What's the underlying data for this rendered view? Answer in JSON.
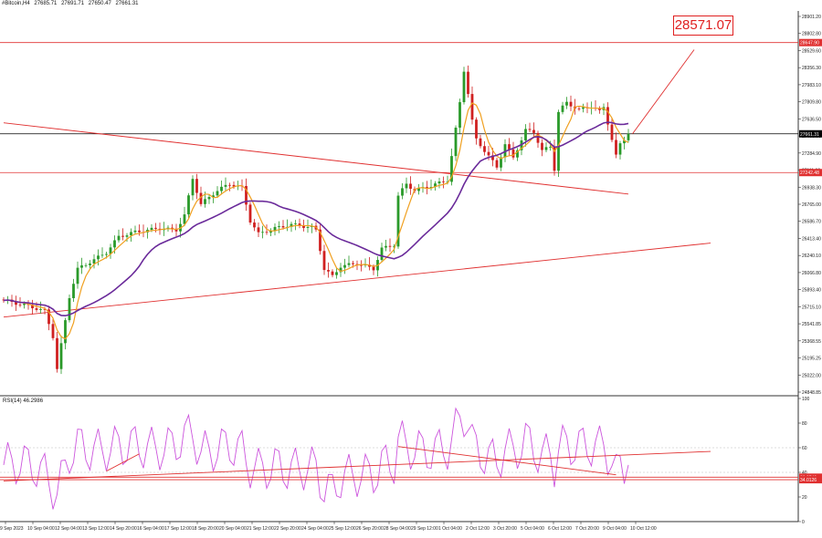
{
  "header": {
    "symbol": "#Bitcoin,H4",
    "open": "27685.71",
    "high": "27691.71",
    "low": "27650.47",
    "close": "27661.31"
  },
  "target_label": "28571.07",
  "rsi_label": "RSI(14) 46.2986",
  "colors": {
    "bull": "#2a9a2a",
    "bear": "#d02020",
    "ma_fast": "#f0a020",
    "ma_slow": "#6a2a9a",
    "lines": "#e03030",
    "rsi": "#cc55dd"
  },
  "chart_data": [
    {
      "type": "candlestick",
      "title": "#Bitcoin,H4",
      "ylim": [
        24848.85,
        28990
      ],
      "price_axis_ticks": [
        "28901.20",
        "28802.80",
        "28529.60",
        "28356.30",
        "27983.10",
        "27809.80",
        "27636.50",
        "27408.00",
        "27284.90",
        "27111.60",
        "26938.30",
        "26765.00",
        "26586.70",
        "26413.40",
        "26240.10",
        "26066.80",
        "25893.40",
        "25715.10",
        "25541.85",
        "25368.55",
        "25195.25",
        "25022.00",
        "24848.85"
      ],
      "time_axis_ticks": [
        "9 Sep 2023",
        "10 Sep 04:00",
        "12 Sep 04:00",
        "13 Sep 12:00",
        "14 Sep 20:00",
        "16 Sep 04:00",
        "17 Sep 12:00",
        "18 Sep 20:00",
        "20 Sep 04:00",
        "21 Sep 12:00",
        "22 Sep 20:00",
        "24 Sep 04:00",
        "25 Sep 12:00",
        "26 Sep 20:00",
        "28 Sep 04:00",
        "29 Sep 12:00",
        "1 Oct 04:00",
        "2 Oct 12:00",
        "3 Oct 20:00",
        "5 Oct 04:00",
        "6 Oct 12:00",
        "7 Oct 20:00",
        "9 Oct 04:00",
        "10 Oct 12:00"
      ],
      "price_markers": [
        {
          "value": 28647.9,
          "label": "28647.90",
          "color": "#e03030"
        },
        {
          "value": 27661.31,
          "label": "27661.31",
          "color": "#000000"
        },
        {
          "value": 27242.48,
          "label": "27242.48",
          "color": "#e03030"
        }
      ],
      "horizontal_lines": [
        28647.9,
        27661.31,
        27242.48
      ],
      "trendlines": [
        {
          "from": [
            0,
            27780
          ],
          "to": [
            152,
            27010
          ]
        },
        {
          "from": [
            0,
            25680
          ],
          "to": [
            172,
            26480
          ]
        }
      ],
      "projection": {
        "from": [
          153,
          27661
        ],
        "to": [
          168,
          28571.07
        ],
        "label": "28571.07"
      },
      "close_anchors": [
        [
          0,
          25860
        ],
        [
          6,
          25800
        ],
        [
          10,
          25745
        ],
        [
          12,
          25470
        ],
        [
          13,
          25120
        ],
        [
          14,
          25380
        ],
        [
          16,
          25900
        ],
        [
          18,
          26200
        ],
        [
          22,
          26300
        ],
        [
          25,
          26380
        ],
        [
          28,
          26550
        ],
        [
          32,
          26600
        ],
        [
          38,
          26640
        ],
        [
          42,
          26620
        ],
        [
          44,
          26780
        ],
        [
          46,
          27180
        ],
        [
          48,
          26900
        ],
        [
          52,
          27050
        ],
        [
          55,
          27120
        ],
        [
          58,
          27080
        ],
        [
          60,
          26720
        ],
        [
          62,
          26580
        ],
        [
          66,
          26640
        ],
        [
          70,
          26680
        ],
        [
          75,
          26650
        ],
        [
          76,
          26620
        ],
        [
          78,
          26200
        ],
        [
          80,
          26120
        ],
        [
          82,
          26230
        ],
        [
          86,
          26260
        ],
        [
          90,
          26200
        ],
        [
          92,
          26420
        ],
        [
          95,
          26460
        ],
        [
          96,
          26990
        ],
        [
          98,
          27120
        ],
        [
          100,
          27050
        ],
        [
          104,
          27100
        ],
        [
          108,
          27160
        ],
        [
          109,
          27420
        ],
        [
          111,
          28000
        ],
        [
          112,
          28350
        ],
        [
          113,
          28100
        ],
        [
          114,
          27800
        ],
        [
          115,
          27600
        ],
        [
          118,
          27420
        ],
        [
          120,
          27300
        ],
        [
          122,
          27550
        ],
        [
          124,
          27400
        ],
        [
          127,
          27700
        ],
        [
          129,
          27680
        ],
        [
          131,
          27480
        ],
        [
          133,
          27520
        ],
        [
          134,
          27280
        ],
        [
          135,
          27900
        ],
        [
          137,
          28000
        ],
        [
          140,
          27920
        ],
        [
          143,
          27960
        ],
        [
          145,
          27900
        ],
        [
          146,
          27950
        ],
        [
          147,
          27780
        ],
        [
          148,
          27600
        ],
        [
          149,
          27420
        ],
        [
          150,
          27550
        ],
        [
          152,
          27661
        ]
      ],
      "ma_fast_period": 5,
      "ma_slow_period": 21
    },
    {
      "type": "line",
      "title": "RSI(14) 46.2986",
      "ylim": [
        0,
        100
      ],
      "y_ticks": [
        "100",
        "80",
        "60",
        "40",
        "20",
        "0"
      ],
      "levels": [
        {
          "value": 36.0746,
          "label": "36.0746",
          "color": "#e03030"
        },
        {
          "value": 34.0126,
          "label": "34.0126",
          "color": "#e03030"
        }
      ],
      "rsi_anchors": [
        [
          0,
          46
        ],
        [
          4,
          48
        ],
        [
          8,
          44
        ],
        [
          10,
          38
        ],
        [
          12,
          28
        ],
        [
          13,
          24
        ],
        [
          14,
          32
        ],
        [
          16,
          55
        ],
        [
          18,
          62
        ],
        [
          22,
          57
        ],
        [
          25,
          59
        ],
        [
          28,
          61
        ],
        [
          32,
          62
        ],
        [
          36,
          59
        ],
        [
          40,
          60
        ],
        [
          44,
          68
        ],
        [
          46,
          73
        ],
        [
          48,
          55
        ],
        [
          52,
          59
        ],
        [
          55,
          62
        ],
        [
          58,
          57
        ],
        [
          60,
          45
        ],
        [
          62,
          42
        ],
        [
          66,
          45
        ],
        [
          70,
          42
        ],
        [
          74,
          44
        ],
        [
          76,
          43
        ],
        [
          78,
          27
        ],
        [
          80,
          24
        ],
        [
          82,
          36
        ],
        [
          86,
          38
        ],
        [
          90,
          38
        ],
        [
          92,
          46
        ],
        [
          95,
          48
        ],
        [
          96,
          66
        ],
        [
          98,
          62
        ],
        [
          100,
          58
        ],
        [
          104,
          57
        ],
        [
          108,
          60
        ],
        [
          109,
          66
        ],
        [
          111,
          82
        ],
        [
          112,
          86
        ],
        [
          113,
          82
        ],
        [
          114,
          64
        ],
        [
          115,
          58
        ],
        [
          118,
          52
        ],
        [
          120,
          48
        ],
        [
          122,
          60
        ],
        [
          124,
          56
        ],
        [
          127,
          66
        ],
        [
          129,
          60
        ],
        [
          131,
          52
        ],
        [
          133,
          56
        ],
        [
          134,
          46
        ],
        [
          135,
          60
        ],
        [
          137,
          62
        ],
        [
          140,
          61
        ],
        [
          143,
          62
        ],
        [
          145,
          60
        ],
        [
          146,
          62
        ],
        [
          147,
          56
        ],
        [
          148,
          50
        ],
        [
          149,
          38
        ],
        [
          150,
          44
        ],
        [
          152,
          46
        ]
      ],
      "trendlines": [
        {
          "from": [
            0,
            33
          ],
          "to": [
            172,
            57
          ]
        },
        {
          "from": [
            96,
            61
          ],
          "to": [
            149,
            38
          ]
        },
        {
          "from": [
            25,
            41
          ],
          "to": [
            33,
            55
          ]
        }
      ]
    }
  ]
}
